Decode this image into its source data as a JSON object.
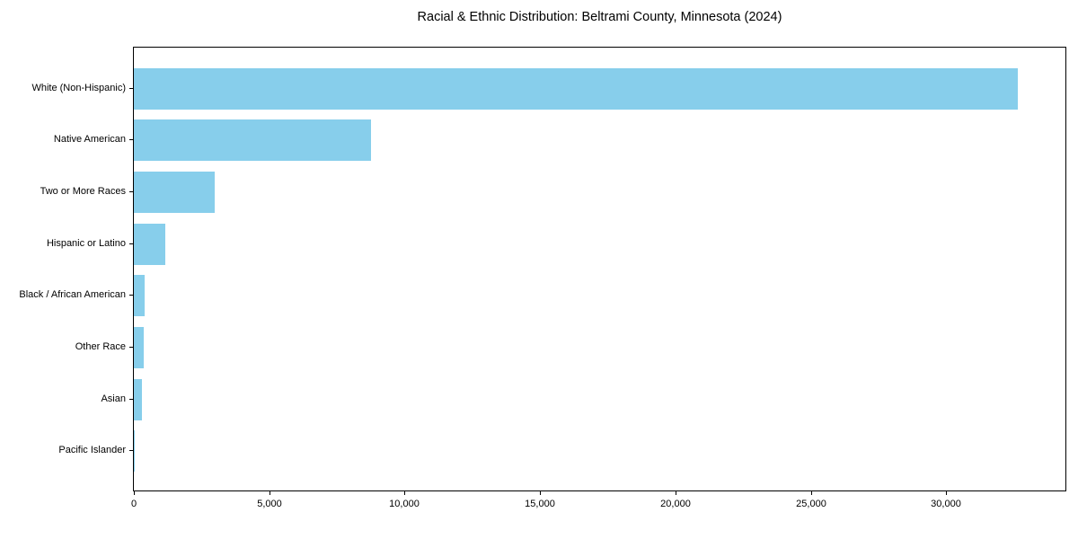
{
  "chart_data": {
    "type": "bar",
    "orientation": "horizontal",
    "title": "Racial & Ethnic Distribution: Beltrami County, Minnesota (2024)",
    "xlabel": "",
    "ylabel": "",
    "categories": [
      "White (Non-Hispanic)",
      "Native American",
      "Two or More Races",
      "Hispanic or Latino",
      "Black / African American",
      "Other Race",
      "Asian",
      "Pacific Islander"
    ],
    "values": [
      32650,
      8740,
      3000,
      1160,
      410,
      350,
      310,
      10
    ],
    "xlim": [
      0,
      34400
    ],
    "xticks": [
      0,
      5000,
      10000,
      15000,
      20000,
      25000,
      30000
    ],
    "xtick_labels": [
      "0",
      "5,000",
      "10,000",
      "15,000",
      "20,000",
      "25,000",
      "30,000"
    ],
    "bar_color": "#87CEEB",
    "spine_color": "#000000",
    "grid": false,
    "legend": false
  }
}
